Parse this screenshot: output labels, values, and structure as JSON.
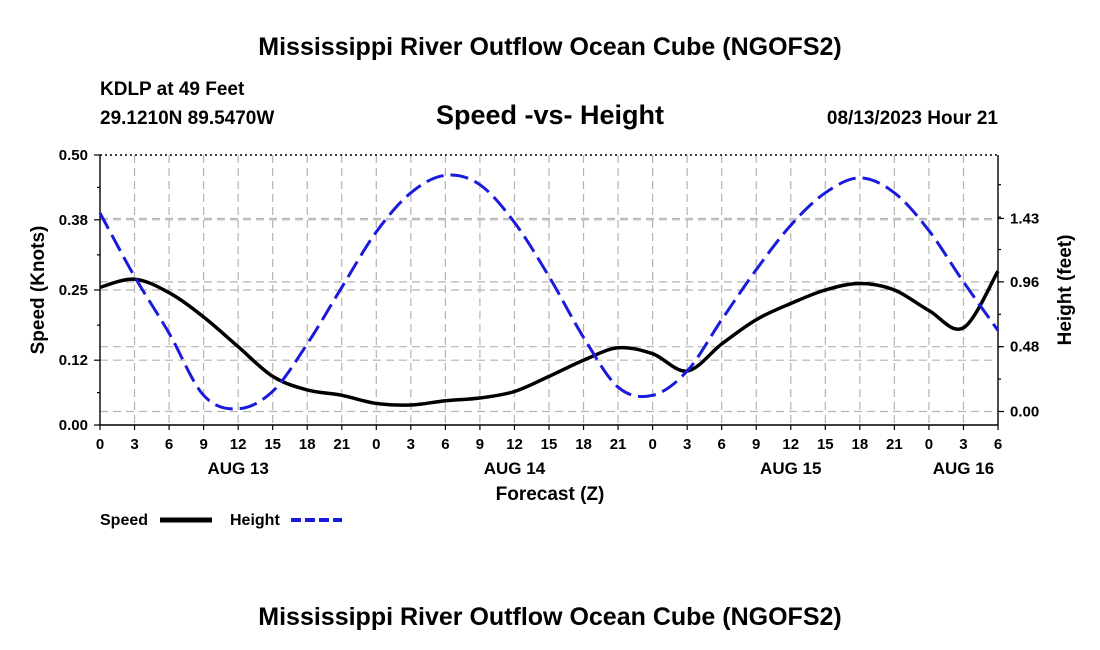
{
  "page": {
    "title": "Mississippi River Outflow Ocean Cube (NGOFS2)",
    "footer_title": "Mississippi River Outflow Ocean Cube (NGOFS2)"
  },
  "info": {
    "station": "KDLP at 49 Feet",
    "coords": "29.1210N  89.5470W",
    "datetime": "08/13/2023 Hour 21"
  },
  "colors": {
    "speed": "#000000",
    "height": "#1a1adc",
    "grid": "#b4b4b4"
  },
  "chart_data": {
    "type": "line",
    "title": "Speed -vs- Height",
    "xlabel": "Forecast (Z)",
    "ylabel": "Speed (Knots)",
    "y2label": "Height (feet)",
    "x_range": [
      0,
      78
    ],
    "x_ticks": [
      0,
      3,
      6,
      9,
      12,
      15,
      18,
      21,
      24,
      27,
      30,
      33,
      36,
      39,
      42,
      45,
      48,
      51,
      54,
      57,
      60,
      63,
      66,
      69,
      72,
      75,
      78
    ],
    "x_tick_labels": [
      "0",
      "3",
      "6",
      "9",
      "12",
      "15",
      "18",
      "21",
      "0",
      "3",
      "6",
      "9",
      "12",
      "15",
      "18",
      "21",
      "0",
      "3",
      "6",
      "9",
      "12",
      "15",
      "18",
      "21",
      "0",
      "3",
      "6"
    ],
    "date_labels": [
      {
        "x": 12,
        "label": "AUG 13"
      },
      {
        "x": 36,
        "label": "AUG 14"
      },
      {
        "x": 60,
        "label": "AUG 15"
      },
      {
        "x": 75,
        "label": "AUG 16"
      }
    ],
    "ylim": [
      0,
      0.5
    ],
    "y_ticks": [
      0.0,
      0.12,
      0.25,
      0.38,
      0.5
    ],
    "y_tick_labels": [
      "0.00",
      "0.12",
      "0.25",
      "0.38",
      "0.50"
    ],
    "y2lim": [
      -0.1,
      1.9
    ],
    "y2_ticks": [
      0.0,
      0.48,
      0.96,
      1.43
    ],
    "y2_tick_labels": [
      "0.00",
      "0.48",
      "0.96",
      "1.43"
    ],
    "series": [
      {
        "name": "Speed",
        "axis": "left",
        "style": "solid",
        "x": [
          0,
          3,
          6,
          9,
          12,
          15,
          18,
          21,
          24,
          27,
          30,
          33,
          36,
          39,
          42,
          45,
          48,
          51,
          54,
          57,
          60,
          63,
          66,
          69,
          72,
          75,
          78
        ],
        "values": [
          0.255,
          0.27,
          0.245,
          0.2,
          0.145,
          0.09,
          0.065,
          0.055,
          0.04,
          0.037,
          0.045,
          0.05,
          0.062,
          0.09,
          0.12,
          0.143,
          0.132,
          0.1,
          0.15,
          0.195,
          0.225,
          0.25,
          0.262,
          0.25,
          0.212,
          0.18,
          0.285
        ]
      },
      {
        "name": "Height",
        "axis": "right",
        "style": "dashed",
        "x": [
          0,
          3,
          6,
          9,
          12,
          15,
          18,
          21,
          24,
          27,
          30,
          33,
          36,
          39,
          42,
          45,
          48,
          51,
          54,
          57,
          60,
          63,
          66,
          69,
          72,
          75,
          78
        ],
        "values": [
          1.47,
          1.0,
          0.58,
          0.12,
          0.02,
          0.15,
          0.5,
          0.92,
          1.33,
          1.62,
          1.75,
          1.68,
          1.4,
          1.0,
          0.55,
          0.18,
          0.12,
          0.3,
          0.68,
          1.05,
          1.38,
          1.62,
          1.73,
          1.62,
          1.34,
          0.96,
          0.6
        ]
      }
    ],
    "legend": [
      {
        "label": "Speed",
        "style": "solid"
      },
      {
        "label": "Height",
        "style": "dashed"
      }
    ],
    "grid": true,
    "legend_position": "bottom-left"
  }
}
